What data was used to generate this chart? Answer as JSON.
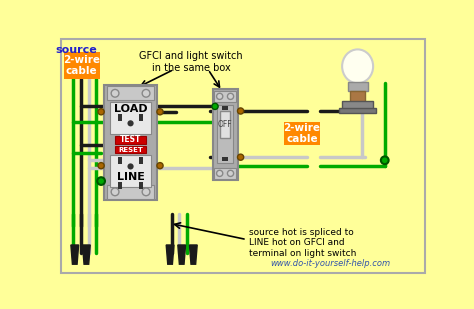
{
  "bg_color": "#FFFF99",
  "source_label": "source",
  "cable_label": "2-wire\ncable",
  "cable_label2": "2-wire\ncable",
  "gfci_label": "GFCI and light switch\nin the same box",
  "load_text": "LOAD",
  "line_text": "LINE",
  "test_text": "TEST",
  "reset_text": "RESET",
  "off_text": "OFF",
  "note_text": "source hot is spliced to\nLINE hot on GFCI and\nterminal on light switch",
  "website": "www.do-it-yourself-help.com",
  "wire_black": "#1a1a1a",
  "wire_white": "#C8C8C8",
  "wire_green": "#00AA00",
  "orange_box": "#FF8800",
  "blue_text": "#2222CC",
  "gray_device": "#AAAAAA",
  "gray_light": "#C8C8C8",
  "gray_dark": "#888888",
  "screw_color": "#D0D0D0",
  "brown_terminal": "#AA6600"
}
